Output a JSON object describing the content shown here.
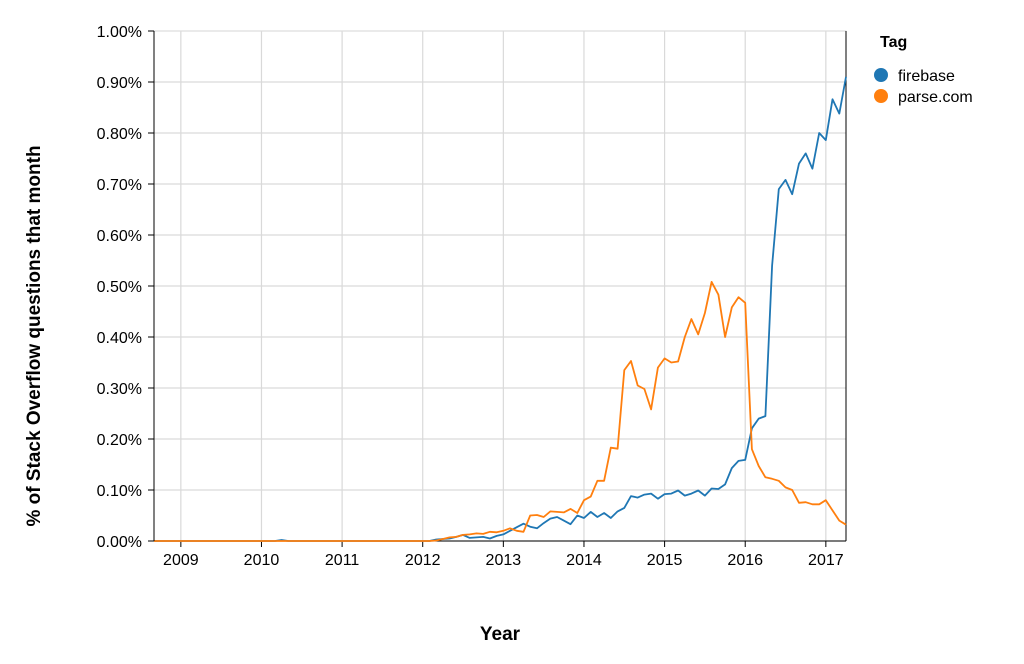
{
  "chart_data": {
    "type": "line",
    "xlabel": "Year",
    "ylabel": "% of Stack Overflow questions that month",
    "xlim": [
      2008.667,
      2017.25
    ],
    "ylim": [
      0,
      1.0
    ],
    "x_ticks": [
      2009,
      2010,
      2011,
      2012,
      2013,
      2014,
      2015,
      2016,
      2017
    ],
    "x_tick_labels": [
      "2009",
      "2010",
      "2011",
      "2012",
      "2013",
      "2014",
      "2015",
      "2016",
      "2017"
    ],
    "y_ticks": [
      0,
      0.1,
      0.2,
      0.3,
      0.4,
      0.5,
      0.6,
      0.7,
      0.8,
      0.9,
      1.0
    ],
    "y_tick_labels": [
      "0.00%",
      "0.10%",
      "0.20%",
      "0.30%",
      "0.40%",
      "0.50%",
      "0.60%",
      "0.70%",
      "0.80%",
      "0.90%",
      "1.00%"
    ],
    "grid": true,
    "legend": {
      "title": "Tag",
      "position": "top-right"
    },
    "series": [
      {
        "name": "firebase",
        "color": "#1f77b4",
        "x": [
          2008.667,
          2008.75,
          2008.833,
          2008.917,
          2009.0,
          2009.083,
          2009.167,
          2009.25,
          2009.333,
          2009.417,
          2009.5,
          2009.583,
          2009.667,
          2009.75,
          2009.833,
          2009.917,
          2010.0,
          2010.083,
          2010.167,
          2010.25,
          2010.333,
          2010.417,
          2010.5,
          2010.583,
          2010.667,
          2010.75,
          2010.833,
          2010.917,
          2011.0,
          2011.083,
          2011.167,
          2011.25,
          2011.333,
          2011.417,
          2011.5,
          2011.583,
          2011.667,
          2011.75,
          2011.833,
          2011.917,
          2012.0,
          2012.083,
          2012.167,
          2012.25,
          2012.333,
          2012.417,
          2012.5,
          2012.583,
          2012.667,
          2012.75,
          2012.833,
          2012.917,
          2013.0,
          2013.083,
          2013.167,
          2013.25,
          2013.333,
          2013.417,
          2013.5,
          2013.583,
          2013.667,
          2013.75,
          2013.833,
          2013.917,
          2014.0,
          2014.083,
          2014.167,
          2014.25,
          2014.333,
          2014.417,
          2014.5,
          2014.583,
          2014.667,
          2014.75,
          2014.833,
          2014.917,
          2015.0,
          2015.083,
          2015.167,
          2015.25,
          2015.333,
          2015.417,
          2015.5,
          2015.583,
          2015.667,
          2015.75,
          2015.833,
          2015.917,
          2016.0,
          2016.083,
          2016.167,
          2016.25,
          2016.333,
          2016.417,
          2016.5,
          2016.583,
          2016.667,
          2016.75,
          2016.833,
          2016.917,
          2017.0,
          2017.083,
          2017.167,
          2017.25
        ],
        "values": [
          0,
          0,
          0,
          0,
          0,
          0,
          0,
          0,
          0,
          0,
          0,
          0,
          0,
          0,
          0,
          0,
          0,
          0,
          0,
          0.002,
          0,
          0,
          0,
          0,
          0,
          0,
          0,
          0,
          0,
          0,
          0,
          0,
          0,
          0,
          0,
          0,
          0,
          0,
          0,
          0,
          0,
          0,
          0.003,
          0.004,
          0.005,
          0.008,
          0.012,
          0.006,
          0.007,
          0.008,
          0.005,
          0.01,
          0.013,
          0.02,
          0.027,
          0.034,
          0.028,
          0.025,
          0.035,
          0.044,
          0.047,
          0.04,
          0.033,
          0.05,
          0.045,
          0.057,
          0.047,
          0.055,
          0.045,
          0.058,
          0.065,
          0.088,
          0.085,
          0.091,
          0.093,
          0.083,
          0.092,
          0.093,
          0.099,
          0.089,
          0.093,
          0.099,
          0.089,
          0.103,
          0.102,
          0.111,
          0.143,
          0.157,
          0.159,
          0.221,
          0.24,
          0.245,
          0.54,
          0.69,
          0.708,
          0.68,
          0.74,
          0.76,
          0.73,
          0.8,
          0.786,
          0.866,
          0.838,
          0.91
        ]
      },
      {
        "name": "parse.com",
        "color": "#ff7f0e",
        "x": [
          2008.667,
          2008.75,
          2008.833,
          2008.917,
          2009.0,
          2009.083,
          2009.167,
          2009.25,
          2009.333,
          2009.417,
          2009.5,
          2009.583,
          2009.667,
          2009.75,
          2009.833,
          2009.917,
          2010.0,
          2010.083,
          2010.167,
          2010.25,
          2010.333,
          2010.417,
          2010.5,
          2010.583,
          2010.667,
          2010.75,
          2010.833,
          2010.917,
          2011.0,
          2011.083,
          2011.167,
          2011.25,
          2011.333,
          2011.417,
          2011.5,
          2011.583,
          2011.667,
          2011.75,
          2011.833,
          2011.917,
          2012.0,
          2012.083,
          2012.167,
          2012.25,
          2012.333,
          2012.417,
          2012.5,
          2012.583,
          2012.667,
          2012.75,
          2012.833,
          2012.917,
          2013.0,
          2013.083,
          2013.167,
          2013.25,
          2013.333,
          2013.417,
          2013.5,
          2013.583,
          2013.667,
          2013.75,
          2013.833,
          2013.917,
          2014.0,
          2014.083,
          2014.167,
          2014.25,
          2014.333,
          2014.417,
          2014.5,
          2014.583,
          2014.667,
          2014.75,
          2014.833,
          2014.917,
          2015.0,
          2015.083,
          2015.167,
          2015.25,
          2015.333,
          2015.417,
          2015.5,
          2015.583,
          2015.667,
          2015.75,
          2015.833,
          2015.917,
          2016.0,
          2016.083,
          2016.167,
          2016.25,
          2016.333,
          2016.417,
          2016.5,
          2016.583,
          2016.667,
          2016.75,
          2016.833,
          2016.917,
          2017.0,
          2017.083,
          2017.167,
          2017.25
        ],
        "values": [
          0,
          0,
          0,
          0,
          0,
          0,
          0,
          0,
          0,
          0,
          0,
          0,
          0,
          0,
          0,
          0,
          0,
          0,
          0,
          0,
          0,
          0,
          0,
          0,
          0,
          0,
          0,
          0,
          0,
          0,
          0,
          0,
          0,
          0,
          0,
          0,
          0,
          0,
          0,
          0,
          0,
          0,
          0.001,
          0.004,
          0.007,
          0.008,
          0.012,
          0.013,
          0.015,
          0.014,
          0.018,
          0.017,
          0.02,
          0.025,
          0.02,
          0.018,
          0.05,
          0.051,
          0.047,
          0.058,
          0.057,
          0.056,
          0.063,
          0.055,
          0.08,
          0.087,
          0.118,
          0.118,
          0.183,
          0.181,
          0.335,
          0.353,
          0.305,
          0.298,
          0.258,
          0.34,
          0.358,
          0.35,
          0.352,
          0.4,
          0.435,
          0.405,
          0.447,
          0.508,
          0.483,
          0.4,
          0.458,
          0.478,
          0.467,
          0.18,
          0.147,
          0.125,
          0.122,
          0.118,
          0.105,
          0.1,
          0.075,
          0.076,
          0.072,
          0.072,
          0.08,
          0.06,
          0.04,
          0.032
        ]
      }
    ]
  }
}
